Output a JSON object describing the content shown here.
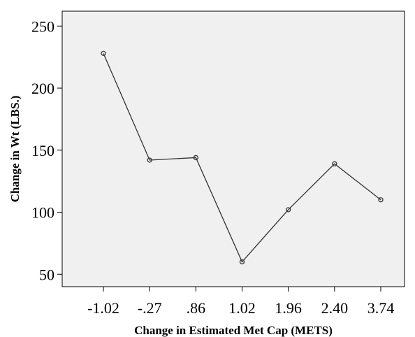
{
  "chart_data": {
    "type": "line",
    "title": "",
    "xlabel": "Change in Estimated Met Cap (METS)",
    "ylabel": "Change in Wt (LBS.)",
    "categories": [
      "-1.02",
      "-.27",
      ".86",
      "1.02",
      "1.96",
      "2.40",
      "3.74"
    ],
    "series": [
      {
        "values": [
          228,
          142,
          144,
          60,
          102,
          139,
          110
        ]
      }
    ],
    "yticks": [
      "50",
      "100",
      "150",
      "200",
      "250"
    ],
    "ylim": [
      40,
      262
    ],
    "grid": false,
    "legend": "none",
    "colors": {
      "plot_background": "#f0f0f0",
      "line": "#333333",
      "marker": "#333333",
      "axis": "#000000"
    }
  }
}
